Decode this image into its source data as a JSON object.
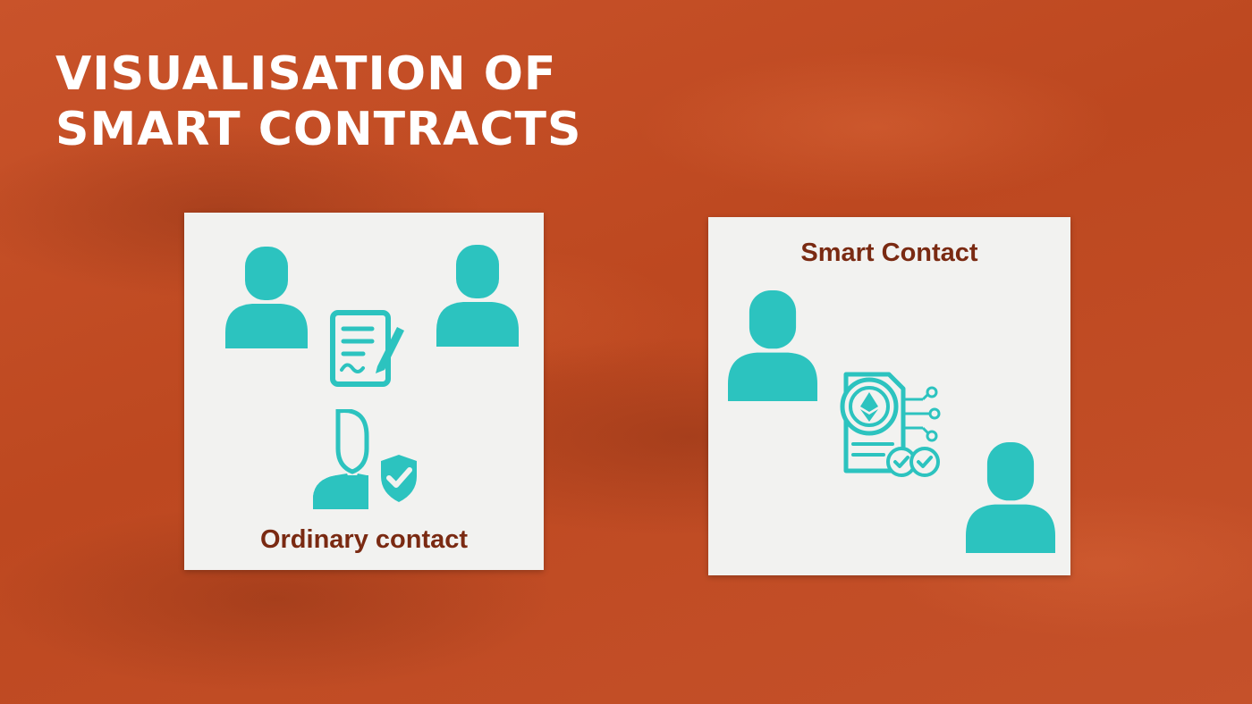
{
  "slide": {
    "title_line1": "VISUALISATION OF",
    "title_line2": "SMART CONTRACTS"
  },
  "ordinary_card": {
    "caption": "Ordinary contact",
    "icons": [
      "person-icon",
      "person-icon",
      "document-signature-icon",
      "notary-shield-icon"
    ]
  },
  "smart_card": {
    "caption": "Smart Contact",
    "icons": [
      "person-icon",
      "person-icon",
      "ethereum-contract-icon"
    ]
  },
  "colors": {
    "background": "#c24c22",
    "card": "#f2f2f0",
    "icon": "#2cc3bf",
    "caption": "#7a2a12",
    "title": "#ffffff"
  }
}
